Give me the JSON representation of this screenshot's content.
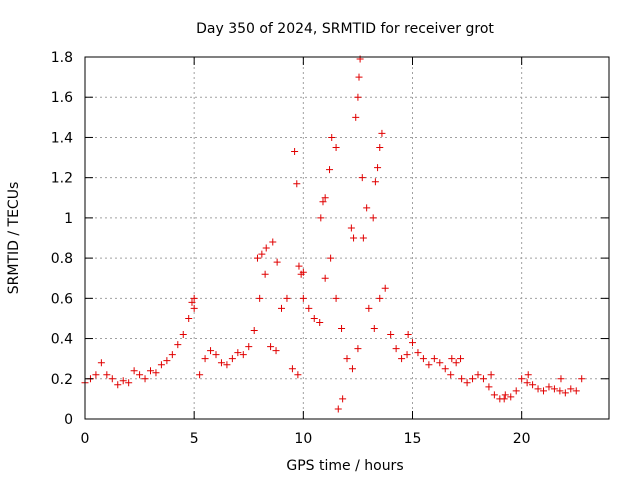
{
  "chart_data": {
    "type": "scatter",
    "title": "Day 350 of 2024, SRMTID for receiver grot",
    "xlabel": "GPS time / hours",
    "ylabel": "SRMTID / TECUs",
    "xlim": [
      0,
      24
    ],
    "ylim": [
      0,
      1.8
    ],
    "xticks": [
      0,
      5,
      10,
      15,
      20
    ],
    "xtick_labels": [
      "0",
      "5",
      "10",
      "15",
      "20"
    ],
    "yticks": [
      0,
      0.2,
      0.4,
      0.6,
      0.8,
      1.0,
      1.2,
      1.4,
      1.6,
      1.8
    ],
    "ytick_labels": [
      "0",
      "0.2",
      "0.4",
      "0.6",
      "0.8",
      "1",
      "1.2",
      "1.4",
      "1.6",
      "1.8"
    ],
    "grid": true,
    "marker": "+",
    "series": [
      {
        "name": "SRMTID",
        "color": "#e00000",
        "x": [
          0.0,
          0.25,
          0.5,
          0.75,
          1.0,
          1.25,
          1.5,
          1.75,
          2.0,
          2.25,
          2.5,
          2.75,
          3.0,
          3.25,
          3.5,
          3.75,
          4.0,
          4.25,
          4.5,
          4.75,
          5.0,
          5.25,
          5.5,
          5.75,
          6.0,
          6.25,
          6.5,
          6.75,
          7.0,
          7.25,
          7.5,
          7.75,
          8.0,
          8.25,
          8.5,
          8.75,
          9.0,
          9.25,
          9.5,
          9.75,
          10.0,
          10.25,
          10.5,
          10.75,
          11.0,
          11.25,
          11.5,
          11.75,
          12.0,
          12.25,
          12.5,
          12.75,
          13.0,
          13.25,
          13.5,
          13.75,
          14.0,
          14.25,
          14.5,
          14.75,
          15.0,
          15.25,
          15.5,
          15.75,
          16.0,
          16.25,
          16.5,
          16.75,
          17.0,
          17.25,
          17.5,
          17.75,
          18.0,
          18.25,
          18.5,
          18.75,
          19.0,
          19.25,
          19.5,
          19.75,
          20.0,
          20.25,
          20.5,
          20.75,
          21.0,
          21.25,
          21.5,
          21.75,
          22.0,
          22.25,
          22.5,
          22.75,
          4.9,
          5.0,
          7.9,
          8.1,
          8.3,
          8.6,
          8.8,
          9.8,
          9.9,
          10.0,
          10.8,
          10.9,
          11.0,
          11.2,
          11.3,
          11.5,
          12.4,
          12.5,
          12.55,
          12.6,
          12.7,
          13.2,
          13.3,
          13.4,
          13.5,
          13.6,
          12.2,
          12.3,
          12.9,
          9.6,
          9.7,
          11.6,
          11.8,
          14.8,
          16.8,
          17.2,
          18.6,
          19.2,
          20.3,
          21.8
        ],
        "y": [
          0.18,
          0.2,
          0.22,
          0.28,
          0.22,
          0.2,
          0.17,
          0.19,
          0.18,
          0.24,
          0.22,
          0.2,
          0.24,
          0.23,
          0.27,
          0.29,
          0.32,
          0.37,
          0.42,
          0.5,
          0.6,
          0.22,
          0.3,
          0.34,
          0.32,
          0.28,
          0.27,
          0.3,
          0.33,
          0.32,
          0.36,
          0.44,
          0.6,
          0.72,
          0.36,
          0.34,
          0.55,
          0.6,
          0.25,
          0.22,
          0.6,
          0.55,
          0.5,
          0.48,
          0.7,
          0.8,
          0.6,
          0.45,
          0.3,
          0.25,
          0.35,
          0.9,
          0.55,
          0.45,
          0.6,
          0.65,
          0.42,
          0.35,
          0.3,
          0.32,
          0.38,
          0.33,
          0.3,
          0.27,
          0.3,
          0.28,
          0.25,
          0.22,
          0.28,
          0.2,
          0.18,
          0.2,
          0.22,
          0.2,
          0.16,
          0.12,
          0.1,
          0.12,
          0.11,
          0.14,
          0.2,
          0.18,
          0.17,
          0.15,
          0.14,
          0.16,
          0.15,
          0.14,
          0.13,
          0.15,
          0.14,
          0.2,
          0.58,
          0.55,
          0.8,
          0.82,
          0.85,
          0.88,
          0.78,
          0.76,
          0.72,
          0.73,
          1.0,
          1.08,
          1.1,
          1.24,
          1.4,
          1.35,
          1.5,
          1.6,
          1.7,
          1.79,
          1.2,
          1.0,
          1.18,
          1.25,
          1.35,
          1.42,
          0.95,
          0.9,
          1.05,
          1.33,
          1.17,
          0.05,
          0.1,
          0.42,
          0.3,
          0.3,
          0.22,
          0.1,
          0.22,
          0.2
        ]
      }
    ]
  }
}
